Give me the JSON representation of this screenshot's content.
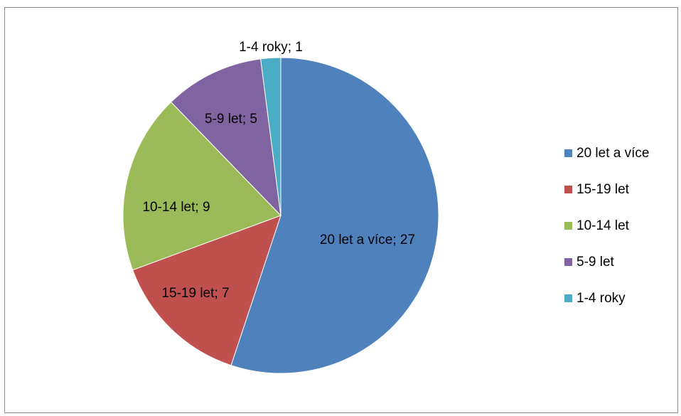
{
  "chart_data": {
    "type": "pie",
    "title": "",
    "legend_position": "right",
    "slices": [
      {
        "label": "20 let a více",
        "value": 27,
        "data_label": "20 let a více; 27",
        "color": "#4F81BD"
      },
      {
        "label": "15-19 let",
        "value": 7,
        "data_label": "15-19 let; 7",
        "color": "#C0504D"
      },
      {
        "label": "10-14 let",
        "value": 9,
        "data_label": "10-14 let; 9",
        "color": "#9BBB59"
      },
      {
        "label": "5-9 let",
        "value": 5,
        "data_label": "5-9 let; 5",
        "color": "#8064A2"
      },
      {
        "label": "1-4 roky",
        "value": 1,
        "data_label": "1-4 roky; 1",
        "color": "#4BACC6"
      }
    ]
  }
}
